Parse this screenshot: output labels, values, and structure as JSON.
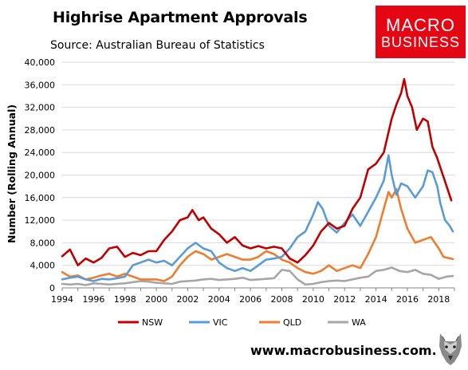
{
  "title": "Highrise Apartment Approvals",
  "source": "Source: Australian Bureau of Statistics",
  "logo": {
    "line1": "MACRO",
    "line2": "BUSINESS",
    "color": "#e40613"
  },
  "website": "www.macrobusiness.com.au",
  "icons": {
    "brand_mascot": "wolf-icon"
  },
  "chart_data": {
    "type": "line",
    "xlabel": "",
    "ylabel": "Number (Rolling Annual)",
    "xlim": [
      1994,
      2019
    ],
    "ylim": [
      0,
      40000
    ],
    "x_ticks": [
      "1994",
      "1996",
      "1998",
      "2000",
      "2002",
      "2004",
      "2006",
      "2008",
      "2010",
      "2012",
      "2014",
      "2016",
      "2018"
    ],
    "y_ticks": [
      "0",
      "4,000",
      "8,000",
      "12,000",
      "16,000",
      "20,000",
      "24,000",
      "28,000",
      "32,000",
      "36,000",
      "40,000"
    ],
    "y_tick_values": [
      0,
      4000,
      8000,
      12000,
      16000,
      20000,
      24000,
      28000,
      32000,
      36000,
      40000
    ],
    "grid": "horizontal",
    "legend_position": "bottom",
    "series": [
      {
        "name": "NSW",
        "color": "#c00000",
        "width": 2.6,
        "x": [
          1994,
          1994.5,
          1995,
          1995.5,
          1996,
          1996.5,
          1997,
          1997.5,
          1998,
          1998.5,
          1999,
          1999.5,
          2000,
          2000.5,
          2001,
          2001.5,
          2002,
          2002.3,
          2002.7,
          2003,
          2003.5,
          2004,
          2004.5,
          2005,
          2005.5,
          2006,
          2006.5,
          2007,
          2007.5,
          2008,
          2008.5,
          2009,
          2009.5,
          2010,
          2010.5,
          2011,
          2011.5,
          2012,
          2012.5,
          2013,
          2013.5,
          2014,
          2014.5,
          2015,
          2015.3,
          2015.6,
          2015.8,
          2016,
          2016.3,
          2016.6,
          2017,
          2017.3,
          2017.6,
          2017.9,
          2018.2,
          2018.5,
          2018.8
        ],
        "values": [
          5600,
          6800,
          4000,
          5200,
          4500,
          5300,
          7000,
          7300,
          5500,
          6200,
          5800,
          6500,
          6500,
          8500,
          10000,
          12000,
          12500,
          13800,
          12000,
          12500,
          10500,
          9500,
          8000,
          9000,
          7500,
          7000,
          7400,
          7000,
          7300,
          7000,
          5200,
          4500,
          5800,
          7500,
          10000,
          11500,
          10500,
          11000,
          14000,
          16000,
          21000,
          22000,
          24000,
          30000,
          32500,
          34500,
          37000,
          34000,
          32000,
          28000,
          30000,
          29500,
          25000,
          23000,
          20500,
          18000,
          15500
        ]
      },
      {
        "name": "VIC",
        "color": "#5b9bd5",
        "width": 2.6,
        "x": [
          1994,
          1994.5,
          1995,
          1995.5,
          1996,
          1996.5,
          1997,
          1997.5,
          1998,
          1998.5,
          1999,
          1999.5,
          2000,
          2000.5,
          2001,
          2001.5,
          2002,
          2002.5,
          2003,
          2003.5,
          2004,
          2004.5,
          2005,
          2005.5,
          2006,
          2006.5,
          2007,
          2007.5,
          2008,
          2008.5,
          2009,
          2009.5,
          2010,
          2010.3,
          2010.6,
          2011,
          2011.5,
          2012,
          2012.5,
          2013,
          2013.5,
          2014,
          2014.5,
          2014.8,
          2015,
          2015.3,
          2015.6,
          2016,
          2016.5,
          2017,
          2017.3,
          2017.6,
          2017.9,
          2018.1,
          2018.4,
          2018.7,
          2018.9
        ],
        "values": [
          1500,
          1800,
          2000,
          1500,
          1200,
          1600,
          1500,
          1700,
          2000,
          4000,
          4500,
          5000,
          4500,
          4800,
          4000,
          5500,
          7000,
          8000,
          7000,
          6500,
          4500,
          3500,
          3000,
          3500,
          3000,
          4000,
          5000,
          5200,
          5500,
          7000,
          9000,
          10000,
          13000,
          15200,
          14000,
          11000,
          9800,
          11500,
          13000,
          11000,
          13500,
          16000,
          19000,
          23500,
          20000,
          16500,
          18500,
          18000,
          16000,
          18000,
          20800,
          20500,
          18000,
          15000,
          12000,
          11000,
          10000
        ]
      },
      {
        "name": "QLD",
        "color": "#ed7d31",
        "width": 2.6,
        "x": [
          1994,
          1994.5,
          1995,
          1995.5,
          1996,
          1996.5,
          1997,
          1997.5,
          1998,
          1998.5,
          1999,
          1999.5,
          2000,
          2000.5,
          2001,
          2001.5,
          2002,
          2002.5,
          2003,
          2003.5,
          2004,
          2004.5,
          2005,
          2005.5,
          2006,
          2006.5,
          2007,
          2007.5,
          2008,
          2008.5,
          2009,
          2009.5,
          2010,
          2010.5,
          2011,
          2011.5,
          2012,
          2012.5,
          2013,
          2013.5,
          2014,
          2014.5,
          2014.8,
          2015,
          2015.3,
          2015.6,
          2016,
          2016.5,
          2017,
          2017.5,
          2018,
          2018.3,
          2018.6,
          2018.9
        ],
        "values": [
          2800,
          2000,
          2200,
          1500,
          1800,
          2200,
          2500,
          2000,
          2500,
          2000,
          1500,
          1500,
          1500,
          1200,
          2000,
          4000,
          5500,
          6500,
          6000,
          5000,
          5500,
          6000,
          5500,
          5000,
          5000,
          5500,
          6500,
          6000,
          5000,
          4500,
          3500,
          2800,
          2500,
          3000,
          4000,
          3000,
          3500,
          4000,
          3500,
          6000,
          9000,
          14000,
          17000,
          16000,
          17500,
          14000,
          10500,
          8000,
          8500,
          9000,
          7000,
          5500,
          5300,
          5100
        ]
      },
      {
        "name": "WA",
        "color": "#a6a6a6",
        "width": 2.6,
        "x": [
          1994,
          1994.5,
          1995,
          1995.5,
          1996,
          1996.5,
          1997,
          1997.5,
          1998,
          1998.5,
          1999,
          1999.5,
          2000,
          2000.5,
          2001,
          2001.5,
          2002,
          2002.5,
          2003,
          2003.5,
          2004,
          2004.5,
          2005,
          2005.5,
          2006,
          2006.5,
          2007,
          2007.5,
          2008,
          2008.5,
          2009,
          2009.5,
          2010,
          2010.5,
          2011,
          2011.5,
          2012,
          2012.5,
          2013,
          2013.5,
          2014,
          2014.5,
          2015,
          2015.5,
          2016,
          2016.5,
          2017,
          2017.5,
          2018,
          2018.5,
          2018.9
        ],
        "values": [
          700,
          600,
          700,
          500,
          800,
          700,
          600,
          700,
          800,
          1000,
          1200,
          1100,
          900,
          800,
          700,
          1100,
          1200,
          1300,
          1500,
          1600,
          1400,
          1500,
          1600,
          1800,
          1400,
          1500,
          1600,
          1700,
          3200,
          3000,
          1500,
          600,
          700,
          1000,
          1200,
          1300,
          1200,
          1500,
          1800,
          2000,
          3000,
          3200,
          3600,
          3000,
          2800,
          3200,
          2500,
          2300,
          1600,
          2000,
          2100
        ]
      }
    ]
  }
}
